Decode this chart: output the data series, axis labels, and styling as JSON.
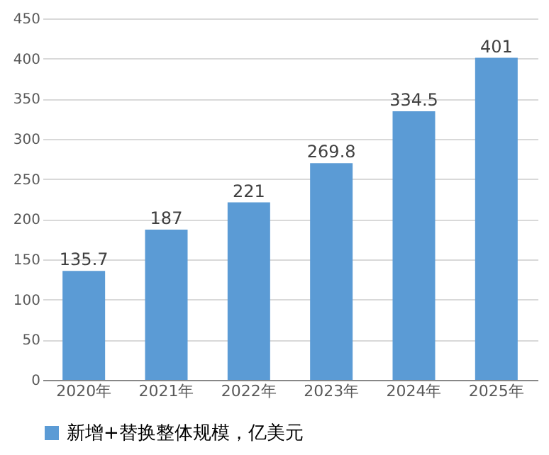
{
  "chart_data": {
    "type": "bar",
    "categories": [
      "2020年",
      "2021年",
      "2022年",
      "2023年",
      "2024年",
      "2025年"
    ],
    "series": [
      {
        "name": "新增+替换整体规模，亿美元",
        "color": "#5b9bd5",
        "values": [
          135.7,
          187,
          221,
          269.8,
          334.5,
          401
        ]
      }
    ],
    "ylim": [
      0,
      450
    ],
    "yticks": [
      0,
      50,
      100,
      150,
      200,
      250,
      300,
      350,
      400,
      450
    ],
    "grid": "y",
    "legend": "bottom",
    "data_labels": true
  }
}
